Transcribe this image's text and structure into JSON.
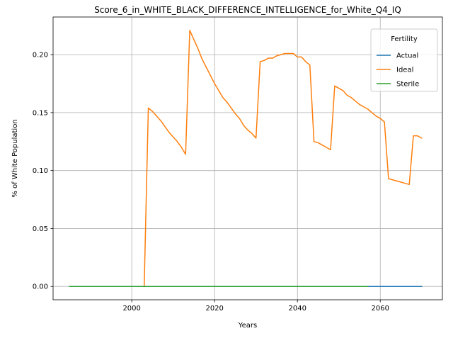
{
  "chart_data": {
    "type": "line",
    "title": "Score_6_in_WHITE_BLACK_DIFFERENCE_INTELLIGENCE_for_White_Q4_IQ",
    "xlabel": "Years",
    "ylabel": "% of White Population",
    "xlim": [
      1981,
      2075
    ],
    "ylim": [
      -0.0115,
      0.2325
    ],
    "x_ticks": [
      2000,
      2020,
      2040,
      2060
    ],
    "x_tick_labels": [
      "2000",
      "2020",
      "2040",
      "2060"
    ],
    "y_ticks": [
      0.0,
      0.05,
      0.1,
      0.15,
      0.2
    ],
    "y_tick_labels": [
      "0.00",
      "0.05",
      "0.10",
      "0.15",
      "0.20"
    ],
    "grid": true,
    "legend": {
      "title": "Fertility",
      "placement": "top-right"
    },
    "series": [
      {
        "name": "Actual",
        "color": "#1f77b4",
        "x": [
          1985,
          2070
        ],
        "y": [
          0.0,
          0.0
        ]
      },
      {
        "name": "Ideal",
        "color": "#ff7f0e",
        "x": [
          1985,
          2003,
          2004,
          2005,
          2006,
          2007,
          2008,
          2009,
          2010,
          2011,
          2012,
          2013,
          2014,
          2015,
          2016,
          2017,
          2018,
          2019,
          2020,
          2021,
          2022,
          2023,
          2024,
          2025,
          2026,
          2027,
          2028,
          2029,
          2030,
          2031,
          2032,
          2033,
          2034,
          2035,
          2036,
          2037,
          2038,
          2039,
          2040,
          2041,
          2042,
          2043,
          2044,
          2045,
          2046,
          2047,
          2048,
          2049,
          2050,
          2051,
          2052,
          2053,
          2054,
          2055,
          2056,
          2057,
          2058,
          2059,
          2060,
          2061,
          2062,
          2063,
          2064,
          2065,
          2066,
          2067,
          2068,
          2069,
          2070
        ],
        "y": [
          0.0,
          0.0,
          0.154,
          0.151,
          0.147,
          0.143,
          0.138,
          0.133,
          0.129,
          0.125,
          0.12,
          0.114,
          0.221,
          0.213,
          0.205,
          0.196,
          0.189,
          0.182,
          0.175,
          0.169,
          0.163,
          0.159,
          0.154,
          0.149,
          0.145,
          0.139,
          0.135,
          0.132,
          0.128,
          0.194,
          0.195,
          0.197,
          0.197,
          0.199,
          0.2,
          0.201,
          0.201,
          0.201,
          0.198,
          0.198,
          0.194,
          0.191,
          0.125,
          0.124,
          0.122,
          0.12,
          0.118,
          0.173,
          0.171,
          0.169,
          0.165,
          0.163,
          0.16,
          0.157,
          0.155,
          0.153,
          0.15,
          0.147,
          0.145,
          0.142,
          0.093,
          0.092,
          0.091,
          0.09,
          0.089,
          0.088,
          0.13,
          0.13,
          0.128
        ]
      },
      {
        "name": "Sterile",
        "color": "#2ca02c",
        "x": [
          1985,
          2057
        ],
        "y": [
          0.0,
          0.0
        ]
      }
    ]
  }
}
